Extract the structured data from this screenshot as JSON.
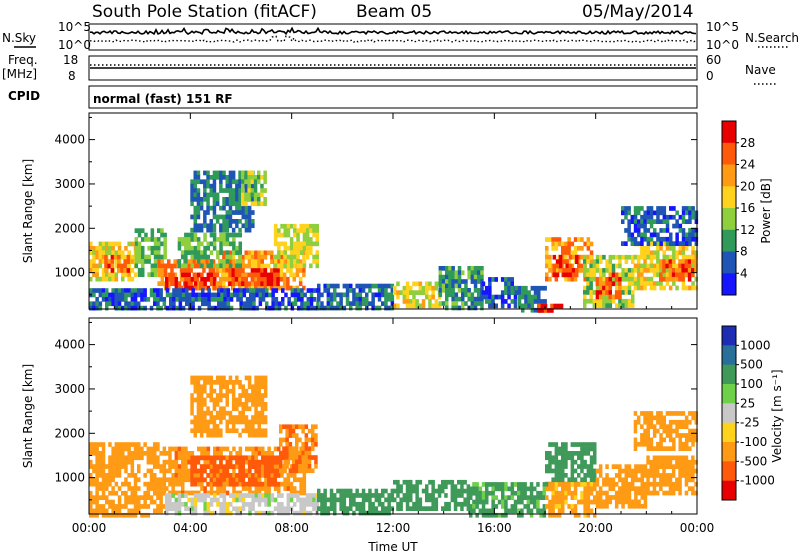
{
  "header": {
    "station": "South Pole Station (fitACF)",
    "beam": "Beam 05",
    "date": "05/May/2014"
  },
  "top_panels": {
    "nsky_label": "N.Sky",
    "nsearch_label": "N.Search",
    "nsky_ticks": [
      "10^5",
      "10^0"
    ],
    "nsearch_ticks": [
      "10^5",
      "10^0"
    ],
    "freq_label": "Freq.",
    "freq_unit": "[MHz]",
    "freq_ticks": [
      "18",
      "8"
    ],
    "nave_label": "Nave",
    "nave_ticks": [
      "60",
      "0"
    ],
    "cpid_label": "CPID",
    "cpid_text": "normal (fast) 151 RF"
  },
  "chart_data": [
    {
      "type": "heatmap",
      "quantity": "Power",
      "xlabel": "",
      "ylabel": "Slant Range [km]",
      "x_ticks": [
        "00:00",
        "04:00",
        "08:00",
        "12:00",
        "16:00",
        "20:00",
        "00:00"
      ],
      "x_range_hours": [
        0,
        24
      ],
      "y_ticks": [
        1000,
        2000,
        3000,
        4000
      ],
      "y_range_km": [
        180,
        4600
      ],
      "colorbar_label": "Power [dB]",
      "colorbar_ticks": [
        "4",
        "8",
        "12",
        "16",
        "20",
        "24",
        "28"
      ],
      "colorbar_colors": [
        "#1515ff",
        "#1f55b4",
        "#2f9a5a",
        "#8fce3c",
        "#ffd21e",
        "#ff9a14",
        "#ff5a0a",
        "#e80000"
      ],
      "bands": [
        {
          "t0": 0.0,
          "t1": 1.8,
          "r0": 850,
          "r1": 1700,
          "value": 18
        },
        {
          "t0": 0.6,
          "t1": 1.6,
          "r0": 1050,
          "r1": 1400,
          "value": 26
        },
        {
          "t0": 1.8,
          "t1": 3.0,
          "r0": 1000,
          "r1": 2000,
          "value": 12
        },
        {
          "t0": 2.7,
          "t1": 5.7,
          "r0": 650,
          "r1": 1300,
          "value": 24
        },
        {
          "t0": 3.0,
          "t1": 5.0,
          "r0": 700,
          "r1": 1000,
          "value": 29
        },
        {
          "t0": 5.0,
          "t1": 8.5,
          "r0": 700,
          "r1": 1500,
          "value": 22
        },
        {
          "t0": 5.5,
          "t1": 7.5,
          "r0": 750,
          "r1": 1100,
          "value": 28
        },
        {
          "t0": 3.5,
          "t1": 6.0,
          "r0": 1200,
          "r1": 1900,
          "value": 12
        },
        {
          "t0": 7.3,
          "t1": 9.0,
          "r0": 1200,
          "r1": 2100,
          "value": 16
        },
        {
          "t0": 4.0,
          "t1": 6.5,
          "r0": 2000,
          "r1": 3300,
          "value": 8
        },
        {
          "t0": 6.0,
          "t1": 7.0,
          "r0": 2600,
          "r1": 3300,
          "value": 14
        },
        {
          "t0": 0.0,
          "t1": 9.0,
          "r0": 180,
          "r1": 650,
          "value": 6
        },
        {
          "t0": 9.0,
          "t1": 12.0,
          "r0": 250,
          "r1": 750,
          "value": 7
        },
        {
          "t0": 12.0,
          "t1": 13.8,
          "r0": 300,
          "r1": 800,
          "value": 17
        },
        {
          "t0": 13.8,
          "t1": 15.5,
          "r0": 250,
          "r1": 1150,
          "value": 10
        },
        {
          "t0": 15.5,
          "t1": 16.8,
          "r0": 250,
          "r1": 900,
          "value": 6
        },
        {
          "t0": 16.8,
          "t1": 18.0,
          "r0": 200,
          "r1": 700,
          "value": 8
        },
        {
          "t0": 17.7,
          "t1": 18.6,
          "r0": 180,
          "r1": 300,
          "value": 28
        },
        {
          "t0": 18.0,
          "t1": 19.8,
          "r0": 900,
          "r1": 1800,
          "value": 22
        },
        {
          "t0": 18.3,
          "t1": 19.2,
          "r0": 1000,
          "r1": 1400,
          "value": 28
        },
        {
          "t0": 19.5,
          "t1": 21.5,
          "r0": 300,
          "r1": 1400,
          "value": 15
        },
        {
          "t0": 20.0,
          "t1": 21.0,
          "r0": 500,
          "r1": 1000,
          "value": 26
        },
        {
          "t0": 21.5,
          "t1": 24.0,
          "r0": 700,
          "r1": 1700,
          "value": 17
        },
        {
          "t0": 22.5,
          "t1": 24.0,
          "r0": 900,
          "r1": 1300,
          "value": 26
        },
        {
          "t0": 21.0,
          "t1": 24.0,
          "r0": 1700,
          "r1": 2500,
          "value": 6
        }
      ]
    },
    {
      "type": "heatmap",
      "quantity": "Velocity",
      "xlabel": "Time UT",
      "ylabel": "Slant Range [km]",
      "x_ticks": [
        "00:00",
        "04:00",
        "08:00",
        "12:00",
        "16:00",
        "20:00",
        "00:00"
      ],
      "x_range_hours": [
        0,
        24
      ],
      "y_ticks": [
        1000,
        2000,
        3000,
        4000
      ],
      "y_range_km": [
        180,
        4600
      ],
      "colorbar_label": "Velocity [m s⁻¹]",
      "colorbar_ticks": [
        "1000",
        "500",
        "100",
        "25",
        "-25",
        "-100",
        "-500",
        "-1000"
      ],
      "colorbar_colors": [
        "#1c2db4",
        "#2a6e9a",
        "#3f9a5a",
        "#6fd14a",
        "#c8c8c8",
        "#ffd21e",
        "#ff9a14",
        "#ff5a0a",
        "#e80000"
      ],
      "bands": [
        {
          "t0": 0.0,
          "t1": 3.0,
          "r0": 800,
          "r1": 1800,
          "value": -300
        },
        {
          "t0": 3.0,
          "t1": 8.5,
          "r0": 700,
          "r1": 1700,
          "value": -400
        },
        {
          "t0": 4.0,
          "t1": 7.5,
          "r0": 900,
          "r1": 1500,
          "value": -700
        },
        {
          "t0": 7.5,
          "t1": 9.0,
          "r0": 1200,
          "r1": 2200,
          "value": -500
        },
        {
          "t0": 4.0,
          "t1": 7.0,
          "r0": 2000,
          "r1": 3300,
          "value": -200
        },
        {
          "t0": 0.0,
          "t1": 3.0,
          "r0": 200,
          "r1": 700,
          "value": -150
        },
        {
          "t0": 3.0,
          "t1": 9.0,
          "r0": 200,
          "r1": 650,
          "value": 0
        },
        {
          "t0": 9.0,
          "t1": 12.0,
          "r0": 250,
          "r1": 750,
          "value": 150
        },
        {
          "t0": 12.0,
          "t1": 15.0,
          "r0": 300,
          "r1": 950,
          "value": 200
        },
        {
          "t0": 15.0,
          "t1": 18.0,
          "r0": 200,
          "r1": 900,
          "value": 120
        },
        {
          "t0": 18.0,
          "t1": 20.0,
          "r0": 900,
          "r1": 1800,
          "value": 300
        },
        {
          "t0": 18.0,
          "t1": 20.0,
          "r0": 180,
          "r1": 900,
          "value": -120
        },
        {
          "t0": 20.0,
          "t1": 22.0,
          "r0": 400,
          "r1": 1300,
          "value": -300
        },
        {
          "t0": 22.0,
          "t1": 24.0,
          "r0": 700,
          "r1": 1500,
          "value": -300
        },
        {
          "t0": 21.5,
          "t1": 24.0,
          "r0": 1700,
          "r1": 2500,
          "value": -200
        }
      ]
    }
  ]
}
